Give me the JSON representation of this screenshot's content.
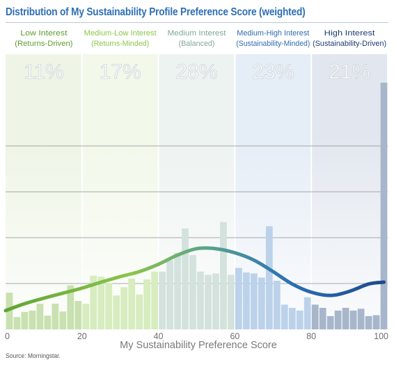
{
  "chart_data": {
    "type": "bar",
    "title": "Distribution of My Sustainability Profile Preference Score (weighted)",
    "xlabel": "My Sustainability Preference Score",
    "ylabel": "",
    "xlim": [
      0,
      100
    ],
    "x_ticks": [
      "0",
      "20",
      "40",
      "60",
      "80",
      "100"
    ],
    "grid": true,
    "bar_width": 2,
    "bars": [
      {
        "x": 1,
        "value": 8.0
      },
      {
        "x": 3,
        "value": 2.7
      },
      {
        "x": 5,
        "value": 3.8
      },
      {
        "x": 7,
        "value": 4.1
      },
      {
        "x": 9,
        "value": 5.6
      },
      {
        "x": 11,
        "value": 3.0
      },
      {
        "x": 13,
        "value": 5.6
      },
      {
        "x": 15,
        "value": 3.9
      },
      {
        "x": 17,
        "value": 9.6
      },
      {
        "x": 19,
        "value": 6.2
      },
      {
        "x": 21,
        "value": 5.6
      },
      {
        "x": 23,
        "value": 11.7
      },
      {
        "x": 25,
        "value": 11.5
      },
      {
        "x": 27,
        "value": 10.1
      },
      {
        "x": 29,
        "value": 7.4
      },
      {
        "x": 31,
        "value": 9.2
      },
      {
        "x": 33,
        "value": 11.1
      },
      {
        "x": 35,
        "value": 7.6
      },
      {
        "x": 37,
        "value": 10.9
      },
      {
        "x": 39,
        "value": 12.6
      },
      {
        "x": 41,
        "value": 12.6
      },
      {
        "x": 43,
        "value": 15.1
      },
      {
        "x": 45,
        "value": 16.7
      },
      {
        "x": 47,
        "value": 22.0
      },
      {
        "x": 49,
        "value": 16.2
      },
      {
        "x": 51,
        "value": 12.6
      },
      {
        "x": 53,
        "value": 11.9
      },
      {
        "x": 55,
        "value": 12.2
      },
      {
        "x": 57,
        "value": 23.4
      },
      {
        "x": 59,
        "value": 11.9
      },
      {
        "x": 61,
        "value": 13.4
      },
      {
        "x": 63,
        "value": 12.4
      },
      {
        "x": 65,
        "value": 12.2
      },
      {
        "x": 67,
        "value": 11.3
      },
      {
        "x": 69,
        "value": 22.5
      },
      {
        "x": 71,
        "value": 10.6
      },
      {
        "x": 73,
        "value": 5.4
      },
      {
        "x": 75,
        "value": 4.7
      },
      {
        "x": 77,
        "value": 4.1
      },
      {
        "x": 79,
        "value": 7.0
      },
      {
        "x": 81,
        "value": 5.4
      },
      {
        "x": 83,
        "value": 4.7
      },
      {
        "x": 85,
        "value": 2.9
      },
      {
        "x": 87,
        "value": 4.1
      },
      {
        "x": 89,
        "value": 4.7
      },
      {
        "x": 91,
        "value": 4.1
      },
      {
        "x": 93,
        "value": 4.5
      },
      {
        "x": 95,
        "value": 2.9
      },
      {
        "x": 97,
        "value": 3.1
      },
      {
        "x": 99,
        "value": 53.8
      }
    ],
    "curve": {
      "x": [
        0,
        5,
        10,
        15,
        20,
        25,
        30,
        35,
        40,
        45,
        50,
        55,
        60,
        65,
        70,
        75,
        80,
        85,
        90,
        95,
        99
      ],
      "y": [
        4.1,
        5.6,
        6.8,
        7.9,
        9.0,
        10.3,
        11.5,
        12.6,
        14.2,
        16.2,
        17.6,
        17.6,
        16.7,
        15.1,
        12.6,
        9.9,
        8.1,
        7.4,
        8.3,
        9.9,
        10.3
      ]
    },
    "categories": [
      {
        "name": "Low Interest",
        "sub": "(Returns-Driven)",
        "percent": "11%",
        "range": [
          0,
          20
        ],
        "color": "#5b9e2f",
        "band": "#eef5e6",
        "bar": "#c9e1b0"
      },
      {
        "name": "Medium-Low Interest",
        "sub": "(Returns-Minded)",
        "percent": "17%",
        "range": [
          20,
          40
        ],
        "color": "#8ac74a",
        "band": "#f2f8ea",
        "bar": "#d7ecbf"
      },
      {
        "name": "Medium Interest",
        "sub": "(Balanced)",
        "percent": "28%",
        "range": [
          40,
          60
        ],
        "color": "#7fa897",
        "band": "#edf3f1",
        "bar": "#d3e2dc"
      },
      {
        "name": "Medium-High Interest",
        "sub": "(Sustainability-Minded)",
        "percent": "23%",
        "range": [
          60,
          80
        ],
        "color": "#2f6bb0",
        "band": "#e5edf6",
        "bar": "#bcd2ea"
      },
      {
        "name": "High Interest",
        "sub": "(Sustainability-Driven)",
        "percent": "21%",
        "range": [
          80,
          100
        ],
        "color": "#1c3b72",
        "band": "#e2e7ef",
        "bar": "#a8b6cc"
      }
    ],
    "source": "Source: Morningstar."
  }
}
